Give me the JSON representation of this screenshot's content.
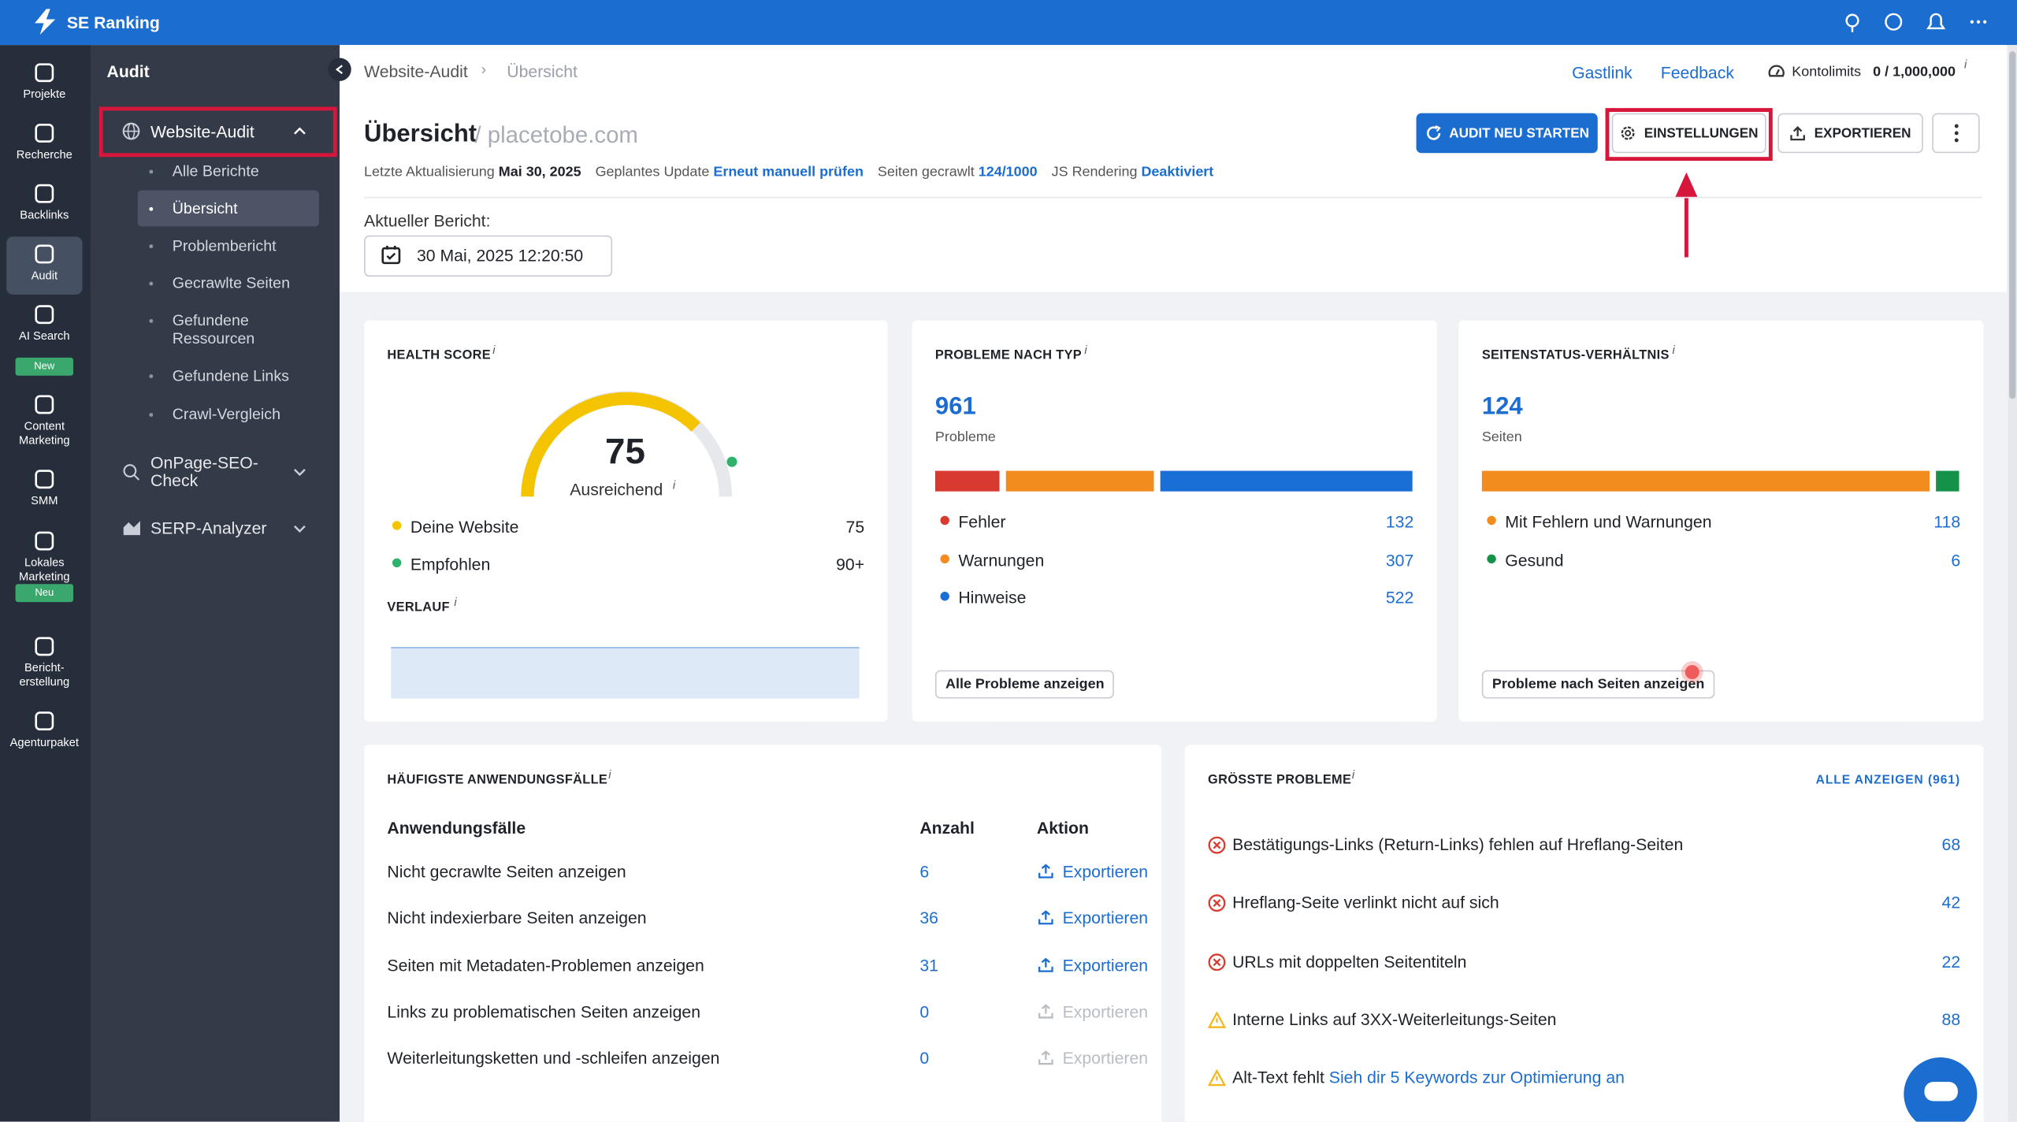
{
  "brand": "SE Ranking",
  "rail": [
    {
      "label": "Projekte"
    },
    {
      "label": "Recherche"
    },
    {
      "label": "Backlinks"
    },
    {
      "label": "Audit"
    },
    {
      "label": "AI Search",
      "badge": "New"
    },
    {
      "label": "Content Marketing"
    },
    {
      "label": "SMM"
    },
    {
      "label": "Lokales Marketing",
      "badge": "Neu"
    },
    {
      "label": "Bericht-erstellung"
    },
    {
      "label": "Agenturpaket"
    }
  ],
  "sidebar": {
    "title": "Audit",
    "website_audit": "Website-Audit",
    "items": [
      "Alle Berichte",
      "Übersicht",
      "Problembericht",
      "Gecrawlte Seiten",
      "Gefundene Ressourcen",
      "Gefundene Links",
      "Crawl-Vergleich"
    ],
    "onpage": "OnPage-SEO-Check",
    "serp": "SERP-Analyzer"
  },
  "breadcrumb": [
    "Website-Audit",
    "Übersicht"
  ],
  "top_links": [
    "Gastlink",
    "Feedback"
  ],
  "limits": {
    "label": "Kontolimits",
    "value": "0 / 1,000,000"
  },
  "info": "i",
  "header": {
    "title": "Übersicht",
    "domain": "/ placetobe.com",
    "buttons": [
      "AUDIT NEU STARTEN",
      "EINSTELLUNGEN",
      "EXPORTIEREN"
    ],
    "meta": [
      {
        "label": "Letzte Aktualisierung",
        "value": "Mai 30, 2025"
      },
      {
        "label": "Geplantes Update",
        "value": "Erneut manuell prüfen"
      },
      {
        "label": "Seiten gecrawlt",
        "value": "124/1000"
      },
      {
        "label": "JS Rendering",
        "value": "Deaktiviert"
      }
    ],
    "report_label": "Aktueller Bericht:",
    "report_date": "30 Mai, 2025 12:20:50"
  },
  "health": {
    "title": "HEALTH SCORE",
    "score": 75,
    "rating": "Ausreichend",
    "legend": [
      {
        "name": "Deine Website",
        "value": "75",
        "color": "#f5c400"
      },
      {
        "name": "Empfohlen",
        "value": "90+",
        "color": "#2fb36c"
      }
    ],
    "history": "VERLAUF"
  },
  "problems": {
    "title": "PROBLEME NACH TYP",
    "total": 961,
    "unit": "Probleme",
    "items": [
      {
        "name": "Fehler",
        "value": 132,
        "color": "#d93a2f"
      },
      {
        "name": "Warnungen",
        "value": 307,
        "color": "#f28c1e"
      },
      {
        "name": "Hinweise",
        "value": 522,
        "color": "#1a6fd6"
      }
    ],
    "button": "Alle Probleme anzeigen"
  },
  "status": {
    "title": "SEITENSTATUS-VERHÄLTNIS",
    "total": 124,
    "unit": "Seiten",
    "items": [
      {
        "name": "Mit Fehlern und Warnungen",
        "value": 118,
        "color": "#f28c1e"
      },
      {
        "name": "Gesund",
        "value": 6,
        "color": "#14924a"
      }
    ],
    "button": "Probleme nach Seiten anzeigen"
  },
  "use_cases": {
    "title": "HÄUFIGSTE ANWENDUNGSFÄLLE",
    "columns": [
      "Anwendungsfälle",
      "Anzahl",
      "Aktion"
    ],
    "rows": [
      {
        "name": "Nicht gecrawlte Seiten anzeigen",
        "count": 6,
        "action": "Exportieren"
      },
      {
        "name": "Nicht indexierbare Seiten anzeigen",
        "count": 36,
        "action": "Exportieren"
      },
      {
        "name": "Seiten mit Metadaten-Problemen anzeigen",
        "count": 31,
        "action": "Exportieren"
      },
      {
        "name": "Links zu problematischen Seiten anzeigen",
        "count": 0,
        "action": "Exportieren"
      },
      {
        "name": "Weiterleitungsketten und -schleifen anzeigen",
        "count": 0,
        "action": "Exportieren"
      }
    ]
  },
  "top_issues": {
    "title": "GRÖSSTE PROBLEME",
    "all": "ALLE ANZEIGEN (961)",
    "items": [
      {
        "kind": "error",
        "text": "Bestätigungs-Links (Return-Links) fehlen auf Hreflang-Seiten",
        "count": 68
      },
      {
        "kind": "error",
        "text": "Hreflang-Seite verlinkt nicht auf sich",
        "count": 42
      },
      {
        "kind": "error",
        "text": "URLs mit doppelten Seitentiteln",
        "count": 22
      },
      {
        "kind": "warning",
        "text": "Interne Links auf 3XX-Weiterleitungs-Seiten",
        "count": 88
      },
      {
        "kind": "warning",
        "text": "Alt-Text fehlt",
        "link": "Sieh dir 5 Keywords zur Optimierung an"
      }
    ]
  }
}
